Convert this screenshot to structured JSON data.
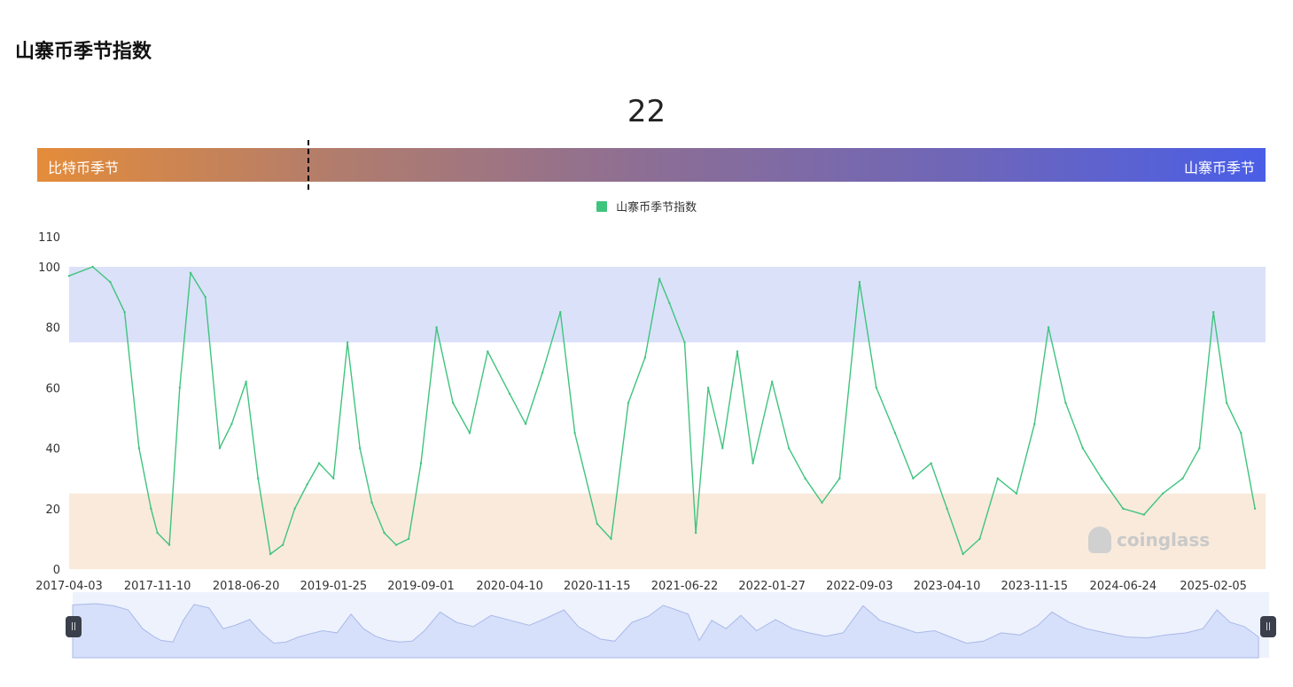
{
  "page": {
    "title": "山寨币季节指数"
  },
  "gauge": {
    "value": "22",
    "left_label": "比特币季节",
    "right_label": "山寨币季节"
  },
  "colors": {
    "line": "#3fc47e",
    "altcoin_band": "#dbe1f9",
    "bitcoin_band": "#f9eadc",
    "gradient_start": "#e48c3a",
    "gradient_end": "#4a5ee6"
  },
  "watermark": {
    "text": "coinglass"
  },
  "chart_data": {
    "type": "line",
    "title": "",
    "legend": [
      "山寨币季节指数"
    ],
    "legend_position": "top-center",
    "grid": false,
    "ylim": [
      0,
      110
    ],
    "y_ticks": [
      "0",
      "20",
      "40",
      "60",
      "80",
      "100",
      "110"
    ],
    "x_ticks": [
      "2017-04-03",
      "2017-11-10",
      "2018-06-20",
      "2019-01-25",
      "2019-09-01",
      "2020-04-10",
      "2020-11-15",
      "2021-06-22",
      "2022-01-27",
      "2022-09-03",
      "2023-04-10",
      "2023-11-15",
      "2024-06-24",
      "2025-02-05"
    ],
    "bands": [
      {
        "name": "altcoin_season",
        "from": 75,
        "to": 100
      },
      {
        "name": "bitcoin_season",
        "from": 0,
        "to": 25
      }
    ],
    "series": [
      {
        "name": "山寨币季节指数",
        "x": [
          "2017-04-03",
          "2017-06-01",
          "2017-07-15",
          "2017-08-20",
          "2017-09-25",
          "2017-10-25",
          "2017-11-10",
          "2017-12-10",
          "2018-01-05",
          "2018-02-01",
          "2018-03-10",
          "2018-04-15",
          "2018-05-15",
          "2018-06-20",
          "2018-07-20",
          "2018-08-20",
          "2018-09-20",
          "2018-10-20",
          "2018-11-20",
          "2018-12-20",
          "2019-01-25",
          "2019-03-01",
          "2019-04-01",
          "2019-05-01",
          "2019-06-01",
          "2019-07-01",
          "2019-08-01",
          "2019-09-01",
          "2019-10-10",
          "2019-11-20",
          "2020-01-01",
          "2020-02-15",
          "2020-04-10",
          "2020-05-20",
          "2020-07-01",
          "2020-08-15",
          "2020-09-20",
          "2020-11-15",
          "2020-12-20",
          "2021-02-01",
          "2021-03-15",
          "2021-04-20",
          "2021-05-15",
          "2021-06-22",
          "2021-07-20",
          "2021-08-20",
          "2021-09-25",
          "2021-11-01",
          "2021-12-10",
          "2022-01-27",
          "2022-03-10",
          "2022-04-20",
          "2022-06-01",
          "2022-07-15",
          "2022-09-03",
          "2022-10-15",
          "2022-12-01",
          "2023-01-15",
          "2023-03-01",
          "2023-04-10",
          "2023-05-20",
          "2023-07-01",
          "2023-08-15",
          "2023-10-01",
          "2023-11-15",
          "2023-12-20",
          "2024-02-01",
          "2024-03-15",
          "2024-05-01",
          "2024-06-24",
          "2024-08-15",
          "2024-10-01",
          "2024-11-20",
          "2025-01-01",
          "2025-02-05",
          "2025-03-10",
          "2025-04-15",
          "2025-05-20"
        ],
        "values": [
          97,
          100,
          95,
          85,
          40,
          20,
          12,
          8,
          60,
          98,
          90,
          40,
          48,
          62,
          30,
          5,
          8,
          20,
          28,
          35,
          30,
          75,
          40,
          22,
          12,
          8,
          10,
          35,
          80,
          55,
          45,
          72,
          58,
          48,
          65,
          85,
          45,
          15,
          10,
          55,
          70,
          96,
          88,
          75,
          12,
          60,
          40,
          72,
          35,
          62,
          40,
          30,
          22,
          30,
          95,
          60,
          45,
          30,
          35,
          20,
          5,
          10,
          30,
          25,
          48,
          80,
          55,
          40,
          30,
          20,
          18,
          25,
          30,
          40,
          85,
          55,
          45,
          20
        ]
      }
    ]
  }
}
